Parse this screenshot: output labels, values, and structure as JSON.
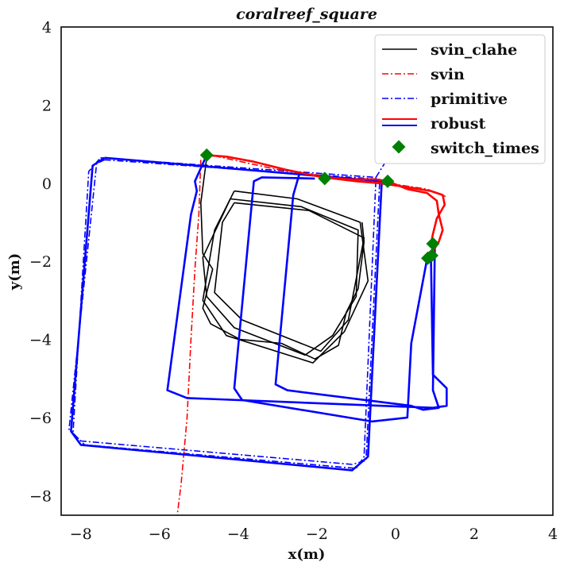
{
  "chart_data": {
    "type": "line",
    "title": "coralreef_square",
    "xlabel": "x(m)",
    "ylabel": "y(m)",
    "xlim": [
      -8.5,
      4
    ],
    "ylim": [
      -8.5,
      4
    ],
    "x_ticks": [
      "−8",
      "−6",
      "−4",
      "−2",
      "0",
      "2",
      "4"
    ],
    "y_ticks": [
      "−8",
      "−6",
      "−4",
      "−2",
      "0",
      "2",
      "4"
    ],
    "grid": false,
    "legend_position": "top-right",
    "legend": [
      "svin_clahe",
      "svin",
      "primitive",
      "robust",
      "switch_times"
    ],
    "series": [
      {
        "name": "svin_clahe",
        "color": "#000000",
        "style": "solid",
        "loops": [
          [
            [
              -4.1,
              -0.2
            ],
            [
              -2.5,
              -0.4
            ],
            [
              -0.9,
              -1.0
            ],
            [
              -0.7,
              -2.5
            ],
            [
              -1.3,
              -3.8
            ],
            [
              -2.1,
              -4.6
            ],
            [
              -4.3,
              -3.9
            ],
            [
              -4.9,
              -3.0
            ],
            [
              -4.6,
              -1.2
            ],
            [
              -4.1,
              -0.2
            ]
          ],
          [
            [
              -4.1,
              -0.5
            ],
            [
              -2.2,
              -0.7
            ],
            [
              -0.8,
              -1.4
            ],
            [
              -1.2,
              -3.5
            ],
            [
              -1.9,
              -4.3
            ],
            [
              -3.9,
              -3.5
            ],
            [
              -4.6,
              -2.8
            ],
            [
              -4.4,
              -1.0
            ],
            [
              -4.1,
              -0.5
            ]
          ],
          [
            [
              -4.2,
              -0.4
            ],
            [
              -2.4,
              -0.6
            ],
            [
              -0.95,
              -1.2
            ],
            [
              -1.0,
              -2.9
            ],
            [
              -1.6,
              -3.9
            ],
            [
              -2.3,
              -4.4
            ],
            [
              -4.1,
              -3.7
            ],
            [
              -4.8,
              -2.9
            ],
            [
              -4.9,
              -1.9
            ],
            [
              -4.2,
              -0.4
            ]
          ],
          [
            [
              -4.8,
              0.65
            ],
            [
              -4.95,
              -0.5
            ],
            [
              -4.9,
              -1.8
            ],
            [
              -4.65,
              -2.2
            ],
            [
              -4.9,
              -3.2
            ],
            [
              -4.7,
              -3.6
            ],
            [
              -3.95,
              -4.0
            ],
            [
              -2.9,
              -4.1
            ],
            [
              -2.05,
              -4.5
            ],
            [
              -1.45,
              -4.15
            ],
            [
              -1.25,
              -3.3
            ],
            [
              -0.95,
              -2.7
            ],
            [
              -0.8,
              -1.5
            ],
            [
              -0.85,
              -1.0
            ]
          ]
        ]
      },
      {
        "name": "svin",
        "color": "#ff0000",
        "style": "dashdot",
        "loops": [
          [
            [
              -4.95,
              0.6
            ],
            [
              -5.0,
              -0.8
            ],
            [
              -5.1,
              -2.2
            ],
            [
              -5.2,
              -4.0
            ],
            [
              -5.3,
              -6.0
            ],
            [
              -5.45,
              -7.7
            ],
            [
              -5.55,
              -8.5
            ]
          ],
          [
            [
              -4.6,
              0.7
            ],
            [
              -3.0,
              0.35
            ],
            [
              -1.5,
              0.15
            ],
            [
              -0.2,
              0.0
            ],
            [
              0.8,
              -0.15
            ],
            [
              1.3,
              -0.35
            ]
          ]
        ]
      },
      {
        "name": "primitive",
        "color": "#0000ff",
        "style": "dashdot",
        "loops": [
          [
            [
              -7.5,
              0.65
            ],
            [
              -0.5,
              0.15
            ],
            [
              -0.5,
              0.1
            ],
            [
              -0.8,
              -7.0
            ],
            [
              -1.0,
              -7.3
            ],
            [
              -7.9,
              -6.7
            ],
            [
              -8.2,
              -6.4
            ],
            [
              -7.8,
              0.3
            ],
            [
              -7.5,
              0.65
            ]
          ],
          [
            [
              -7.4,
              0.6
            ],
            [
              -0.4,
              0.1
            ],
            [
              -0.75,
              -7.1
            ],
            [
              -1.1,
              -7.2
            ],
            [
              -8.0,
              -6.6
            ],
            [
              -8.3,
              -6.3
            ],
            [
              -7.6,
              0.5
            ],
            [
              -7.4,
              0.6
            ]
          ],
          [
            [
              -0.5,
              0.15
            ],
            [
              -0.25,
              0.55
            ],
            [
              -0.2,
              0.55
            ]
          ]
        ]
      },
      {
        "name": "robust_blue",
        "color": "#0000ff",
        "style": "solid",
        "loops": [
          [
            [
              -7.4,
              0.65
            ],
            [
              -0.35,
              0.05
            ],
            [
              -0.7,
              -7.0
            ],
            [
              -1.1,
              -7.35
            ],
            [
              -8.0,
              -6.7
            ],
            [
              -8.25,
              -6.35
            ],
            [
              -7.7,
              0.45
            ],
            [
              -7.4,
              0.65
            ]
          ],
          [
            [
              -4.8,
              0.72
            ],
            [
              -5.1,
              0.05
            ],
            [
              -5.05,
              -0.2
            ],
            [
              -5.2,
              -0.8
            ],
            [
              -5.8,
              -5.3
            ],
            [
              -5.3,
              -5.5
            ],
            [
              0.95,
              -5.75
            ],
            [
              1.3,
              -5.7
            ],
            [
              1.3,
              -5.25
            ],
            [
              0.95,
              -4.9
            ],
            [
              0.9,
              -1.9
            ]
          ],
          [
            [
              0.8,
              -1.95
            ],
            [
              0.4,
              -4.1
            ],
            [
              0.3,
              -6.0
            ],
            [
              -0.6,
              -6.1
            ],
            [
              -3.9,
              -5.55
            ],
            [
              -4.1,
              -5.25
            ],
            [
              -3.6,
              0.05
            ],
            [
              -3.4,
              0.15
            ],
            [
              -2.05,
              0.12
            ]
          ],
          [
            [
              -2.45,
              0.22
            ],
            [
              -2.6,
              -0.3
            ],
            [
              -3.05,
              -5.15
            ],
            [
              -2.75,
              -5.3
            ],
            [
              0.4,
              -5.7
            ],
            [
              0.7,
              -5.8
            ],
            [
              1.1,
              -5.75
            ],
            [
              0.95,
              -5.3
            ],
            [
              1.0,
              -1.6
            ]
          ]
        ]
      },
      {
        "name": "robust_red",
        "color": "#ff0000",
        "style": "solid",
        "loops": [
          [
            [
              -4.8,
              0.72
            ],
            [
              -4.3,
              0.68
            ],
            [
              -3.6,
              0.55
            ],
            [
              -2.8,
              0.35
            ],
            [
              -2.0,
              0.18
            ],
            [
              -1.2,
              0.1
            ],
            [
              -0.5,
              0.1
            ],
            [
              -0.2,
              0.05
            ],
            [
              0.3,
              -0.15
            ],
            [
              0.8,
              -0.25
            ],
            [
              1.05,
              -0.45
            ],
            [
              1.1,
              -0.8
            ],
            [
              1.2,
              -1.2
            ],
            [
              1.1,
              -1.5
            ],
            [
              0.85,
              -1.9
            ]
          ],
          [
            [
              -1.8,
              0.15
            ],
            [
              -1.0,
              0.05
            ],
            [
              -0.4,
              0.0
            ],
            [
              0.3,
              -0.1
            ],
            [
              0.9,
              -0.2
            ],
            [
              1.2,
              -0.3
            ],
            [
              1.25,
              -0.55
            ],
            [
              1.05,
              -0.9
            ],
            [
              0.95,
              -1.3
            ],
            [
              0.9,
              -1.55
            ]
          ]
        ]
      }
    ],
    "switch_times": {
      "name": "switch_times",
      "color": "#008000",
      "points": [
        [
          -4.8,
          0.72
        ],
        [
          -1.8,
          0.12
        ],
        [
          -0.2,
          0.05
        ],
        [
          0.95,
          -1.55
        ],
        [
          0.92,
          -1.85
        ],
        [
          0.82,
          -1.92
        ]
      ]
    }
  }
}
